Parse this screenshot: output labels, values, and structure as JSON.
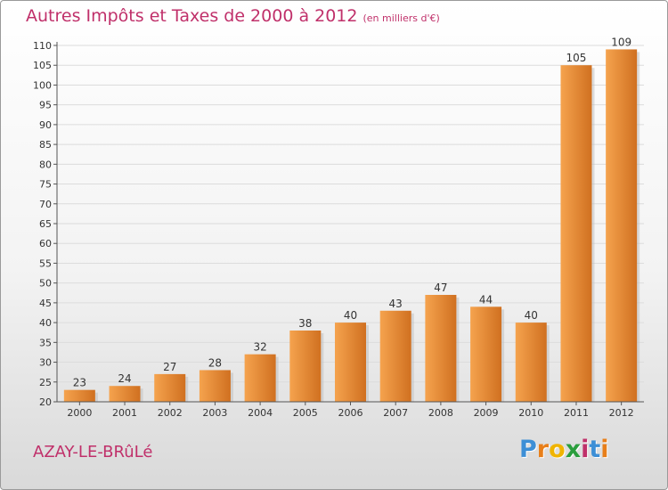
{
  "title": "Autres Impôts et Taxes de 2000 à 2012",
  "subtitle": "(en milliers d'€)",
  "commune": "AZAY-LE-BRûLé",
  "logo": {
    "letters": [
      "P",
      "r",
      "o",
      "x",
      "i",
      "t",
      "i"
    ],
    "colors": [
      "#3d8fd6",
      "#e87f1a",
      "#f0b400",
      "#2b9e3e",
      "#c0306a",
      "#3d8fd6",
      "#e87f1a"
    ]
  },
  "colors": {
    "bar_light": "#f5a34e",
    "bar_dark": "#d07020",
    "accent": "#c0306a"
  },
  "chart_data": {
    "type": "bar",
    "title": "Autres Impôts et Taxes de 2000 à 2012",
    "subtitle": "(en milliers d'€)",
    "categories": [
      "2000",
      "2001",
      "2002",
      "2003",
      "2004",
      "2005",
      "2006",
      "2007",
      "2008",
      "2009",
      "2010",
      "2011",
      "2012"
    ],
    "values": [
      23,
      24,
      27,
      28,
      32,
      38,
      40,
      43,
      47,
      44,
      40,
      105,
      109
    ],
    "ylim": [
      20,
      110
    ],
    "yticks": [
      20,
      25,
      30,
      35,
      40,
      45,
      50,
      55,
      60,
      65,
      70,
      75,
      80,
      85,
      90,
      95,
      100,
      105,
      110
    ],
    "grid": true,
    "xlabel": "",
    "ylabel": ""
  }
}
